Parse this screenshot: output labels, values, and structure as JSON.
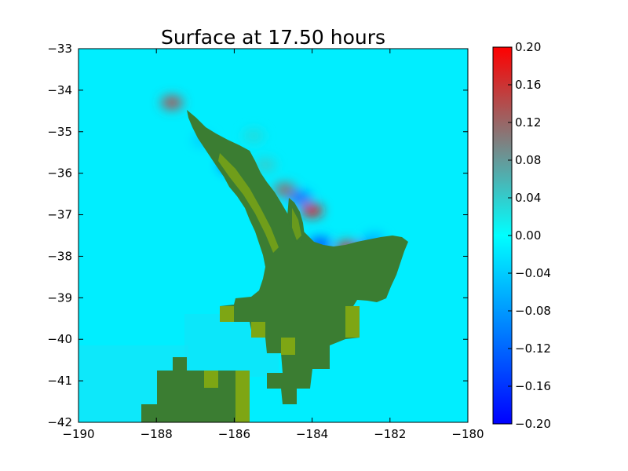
{
  "chart_data": {
    "type": "heatmap",
    "title": "Surface at 17.50 hours",
    "xlabel": "",
    "ylabel": "",
    "xlim": [
      -190,
      -180
    ],
    "ylim": [
      -42,
      -33
    ],
    "x_ticks": [
      -190,
      -188,
      -186,
      -184,
      -182,
      -180
    ],
    "y_ticks": [
      -33,
      -34,
      -35,
      -36,
      -37,
      -38,
      -39,
      -40,
      -41,
      -42
    ],
    "x_tick_labels": [
      "−190",
      "−188",
      "−186",
      "−184",
      "−182",
      "−180"
    ],
    "y_tick_labels": [
      "−33",
      "−34",
      "−35",
      "−36",
      "−37",
      "−38",
      "−39",
      "−40",
      "−41",
      "−42"
    ],
    "background_value": 0.0,
    "colorbar": {
      "range": [
        -0.2,
        0.2
      ],
      "ticks": [
        0.2,
        0.16,
        0.12,
        0.08,
        0.04,
        0.0,
        -0.04,
        -0.08,
        -0.12,
        -0.16,
        -0.2
      ],
      "tick_labels": [
        "0.20",
        "0.16",
        "0.12",
        "0.08",
        "0.04",
        "0.00",
        "−0.04",
        "−0.08",
        "−0.12",
        "−0.16",
        "−0.20"
      ],
      "colors": [
        "#0000ff",
        "#00ffff",
        "#ff0000"
      ]
    },
    "land_color": "#3b7d32",
    "land_highlight_color": "#7ea614",
    "anomalies": [
      {
        "lon": -187.6,
        "lat": -34.3,
        "value": 0.14
      },
      {
        "lon": -186.1,
        "lat": -35.8,
        "value": -0.16
      },
      {
        "lon": -185.2,
        "lat": -35.8,
        "value": 0.04
      },
      {
        "lon": -184.7,
        "lat": -36.4,
        "value": 0.12
      },
      {
        "lon": -184.3,
        "lat": -36.6,
        "value": -0.12
      },
      {
        "lon": -184.0,
        "lat": -36.9,
        "value": 0.18
      },
      {
        "lon": -183.8,
        "lat": -37.7,
        "value": -0.14
      },
      {
        "lon": -183.1,
        "lat": -37.8,
        "value": 0.16
      },
      {
        "lon": -182.6,
        "lat": -37.8,
        "value": -0.12
      },
      {
        "lon": -182.4,
        "lat": -37.6,
        "value": -0.06
      },
      {
        "lon": -186.8,
        "lat": -35.2,
        "value": -0.04
      },
      {
        "lon": -185.5,
        "lat": -35.1,
        "value": 0.03
      }
    ]
  }
}
